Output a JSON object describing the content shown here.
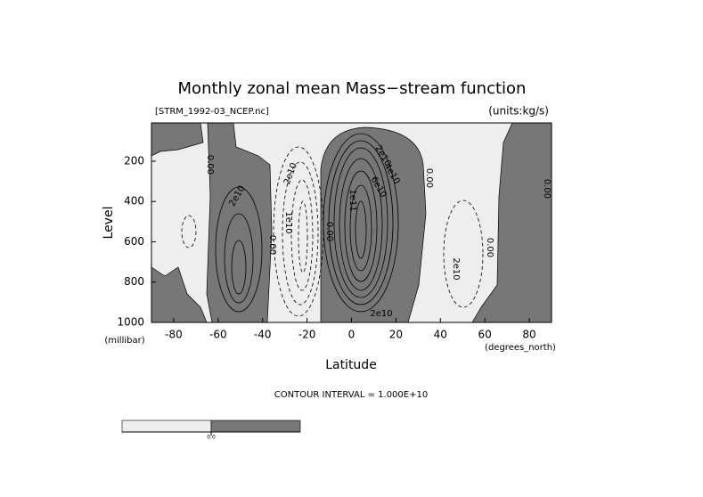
{
  "chart_data": {
    "type": "contour",
    "title": "Monthly zonal mean Mass−stream function",
    "file_label": "[STRM_1992-03_NCEP.nc]",
    "units_label": "(units:kg/s)",
    "xlabel": "Latitude",
    "ylabel": "Level",
    "x_unit": "(degrees_north)",
    "y_unit": "(millibar)",
    "xlim": [
      -90,
      90
    ],
    "ylim": [
      1000,
      10
    ],
    "xticks": [
      -80,
      -60,
      -40,
      -20,
      0,
      20,
      40,
      60,
      80
    ],
    "yticks": [
      200,
      400,
      600,
      800,
      1000
    ],
    "contour_interval": "CONTOUR INTERVAL = 1.000E+10",
    "contour_labels": [
      "0.00",
      "2e10",
      "0.00",
      "2e10",
      "1e10",
      "0.00",
      "2e10",
      "4e10",
      "1e11",
      "6e10",
      "0.00",
      "0.00",
      "2e10",
      "0.00",
      "2e10"
    ],
    "colorbar": {
      "colors": [
        "#eeeeee",
        "#777777"
      ],
      "levels": [
        {
          "value": 0,
          "label": "0.0"
        }
      ]
    }
  }
}
